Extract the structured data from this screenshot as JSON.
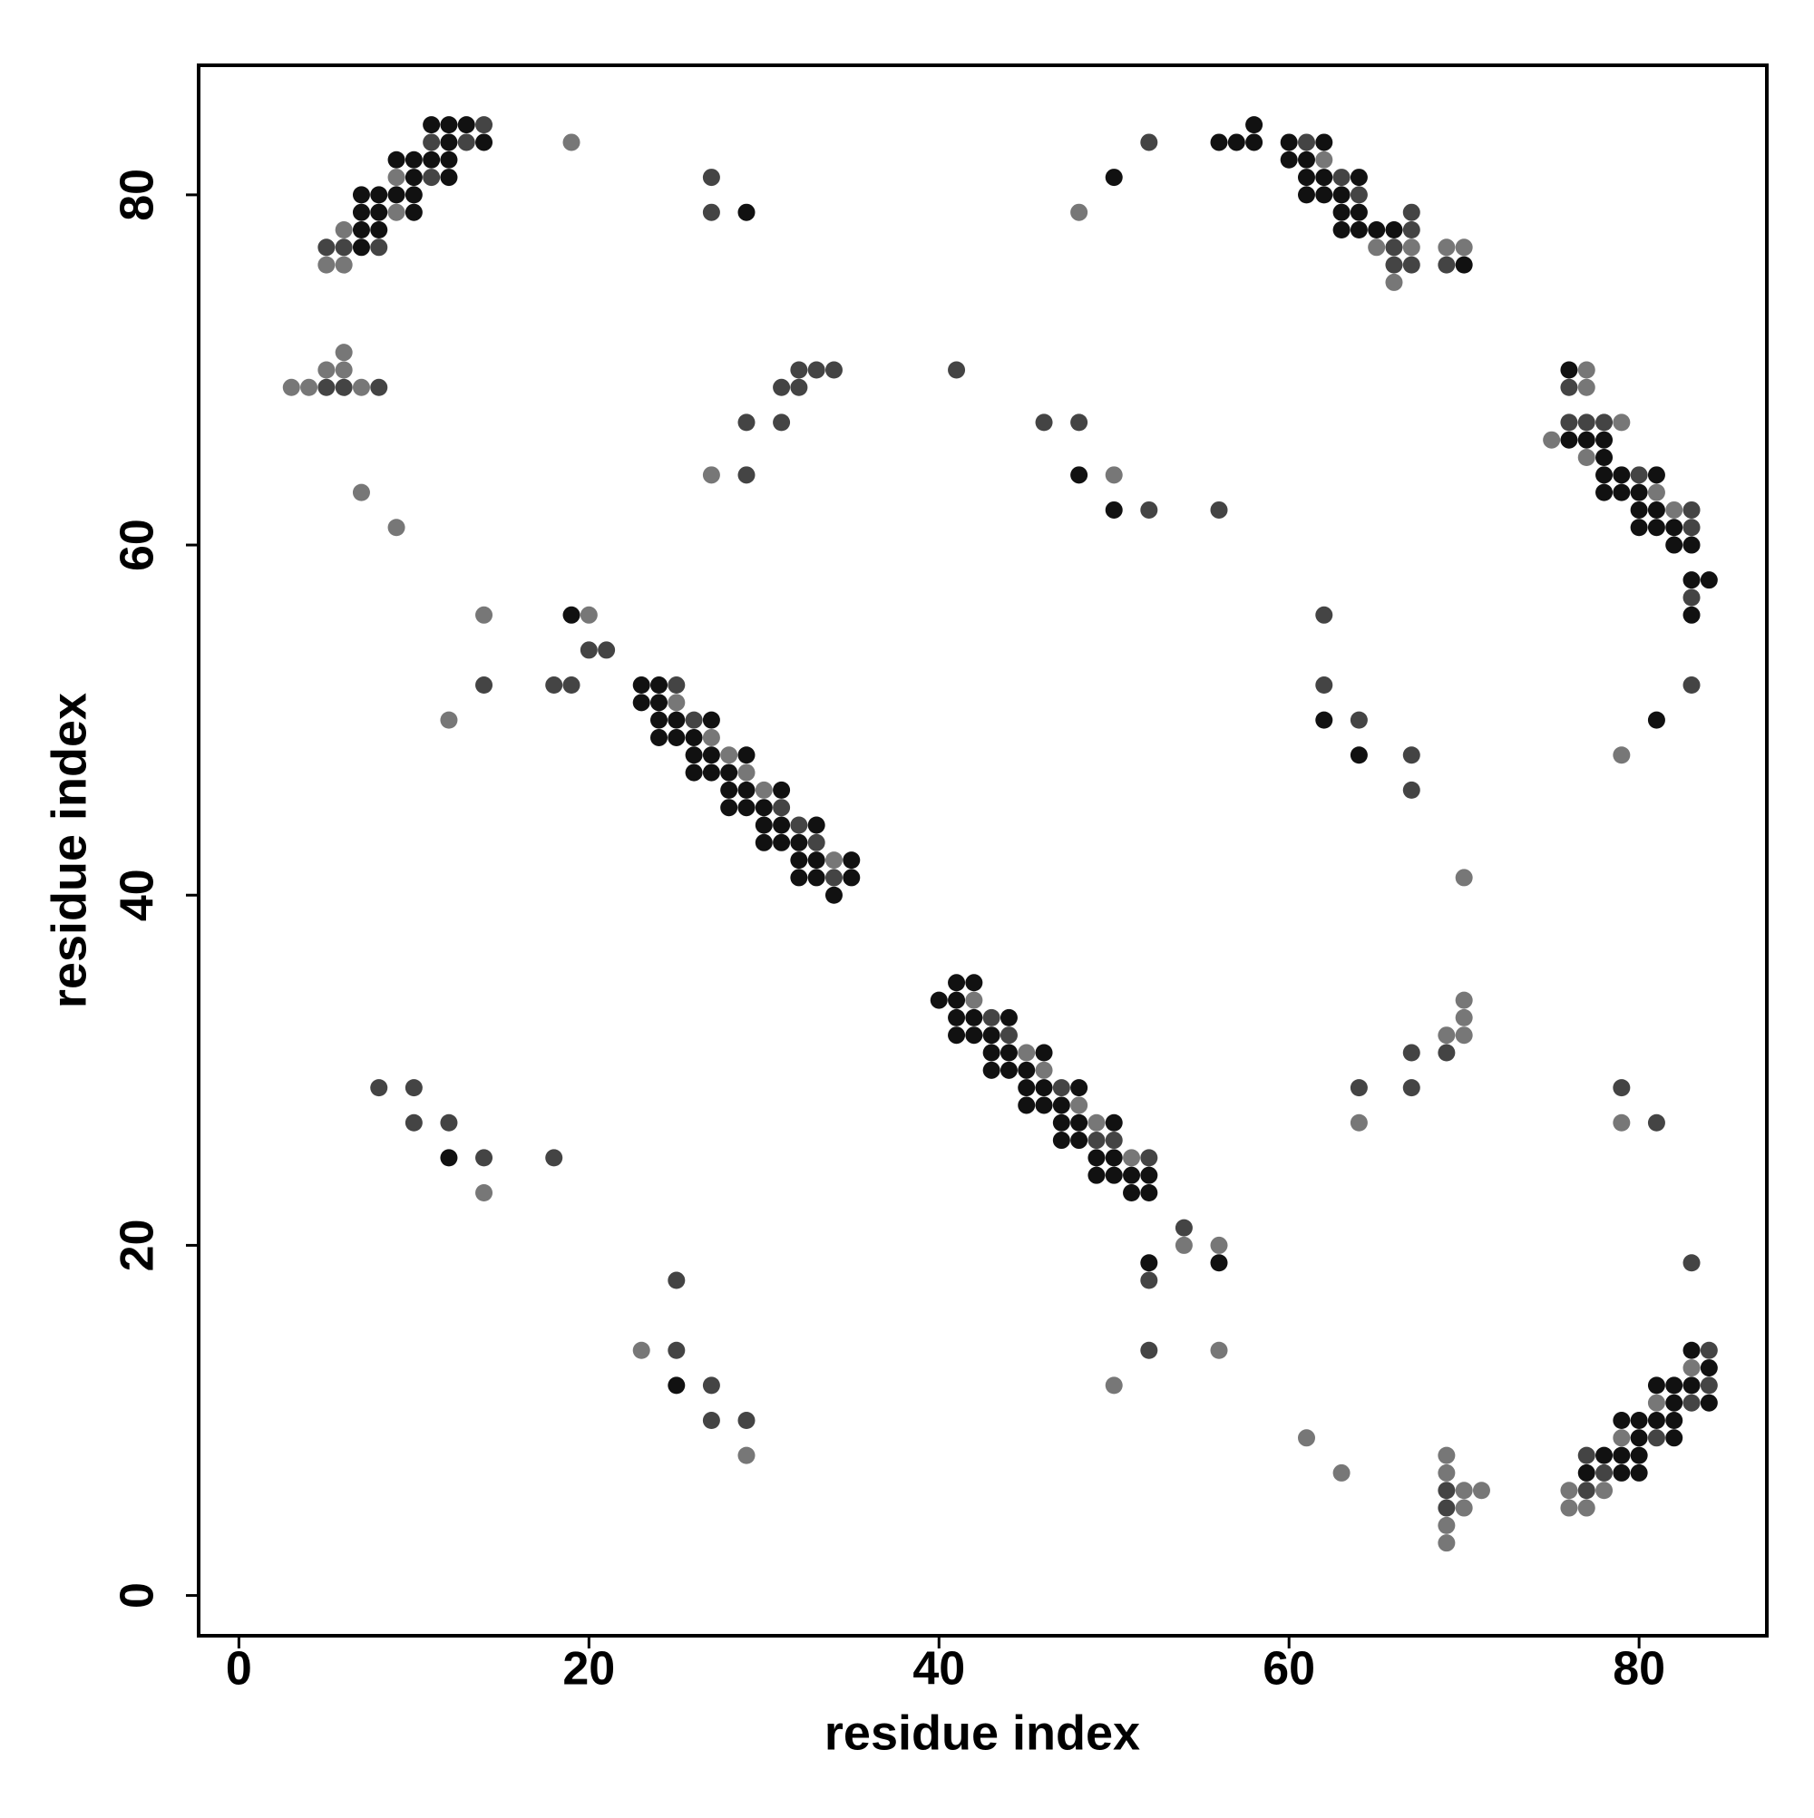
{
  "chart_data": {
    "type": "scatter",
    "xlabel": "residue index",
    "ylabel": "residue index",
    "xlim": [
      -2.3,
      87.3
    ],
    "ylim": [
      -2.3,
      87.4
    ],
    "xticks": [
      0,
      20,
      40,
      60,
      80
    ],
    "yticks": [
      0,
      20,
      40,
      60,
      80
    ],
    "grid": false,
    "x": [
      11,
      12,
      13,
      14,
      58,
      11,
      12,
      13,
      14,
      19,
      52,
      56,
      57,
      58,
      60,
      61,
      62,
      9,
      10,
      11,
      12,
      60,
      61,
      62,
      9,
      10,
      11,
      12,
      27,
      50,
      61,
      62,
      63,
      64,
      7,
      8,
      9,
      10,
      61,
      62,
      63,
      64,
      7,
      8,
      9,
      10,
      27,
      29,
      48,
      63,
      64,
      67,
      6,
      7,
      8,
      63,
      64,
      65,
      66,
      67,
      5,
      6,
      7,
      8,
      65,
      66,
      67,
      69,
      70,
      5,
      6,
      66,
      67,
      69,
      70,
      66,
      6,
      5,
      6,
      32,
      33,
      34,
      41,
      76,
      77,
      3,
      4,
      5,
      6,
      7,
      8,
      31,
      32,
      76,
      77,
      29,
      31,
      46,
      48,
      76,
      77,
      78,
      79,
      75,
      76,
      77,
      78,
      77,
      78,
      27,
      29,
      48,
      50,
      78,
      79,
      80,
      81,
      7,
      78,
      79,
      80,
      81,
      50,
      52,
      56,
      80,
      81,
      82,
      83,
      9,
      80,
      81,
      82,
      83,
      82,
      83,
      83,
      84,
      83,
      14,
      19,
      20,
      62,
      83,
      20,
      21,
      14,
      18,
      19,
      23,
      24,
      25,
      62,
      83,
      23,
      24,
      25,
      12,
      24,
      25,
      26,
      27,
      62,
      64,
      81,
      24,
      25,
      26,
      27,
      26,
      27,
      28,
      29,
      64,
      67,
      79,
      26,
      27,
      28,
      29,
      28,
      29,
      30,
      31,
      67,
      28,
      29,
      30,
      31,
      30,
      31,
      32,
      33,
      30,
      31,
      32,
      33,
      32,
      33,
      34,
      35,
      32,
      33,
      34,
      35,
      70,
      34,
      41,
      42,
      40,
      41,
      42,
      70,
      41,
      42,
      43,
      44,
      70,
      41,
      42,
      43,
      44,
      69,
      70,
      43,
      44,
      45,
      46,
      67,
      69,
      43,
      44,
      45,
      46,
      8,
      10,
      45,
      46,
      47,
      48,
      64,
      67,
      79,
      45,
      46,
      47,
      48,
      10,
      12,
      47,
      48,
      49,
      50,
      64,
      79,
      81,
      47,
      48,
      49,
      50,
      12,
      14,
      18,
      49,
      50,
      51,
      52,
      49,
      50,
      51,
      52,
      14,
      51,
      52,
      54,
      54,
      56,
      52,
      56,
      83,
      25,
      52,
      23,
      25,
      52,
      56,
      83,
      84,
      83,
      84,
      25,
      27,
      50,
      81,
      82,
      83,
      84,
      81,
      82,
      83,
      84,
      27,
      29,
      79,
      80,
      81,
      82,
      61,
      79,
      80,
      81,
      82,
      29,
      69,
      77,
      78,
      79,
      80,
      63,
      69,
      77,
      78,
      79,
      80,
      69,
      70,
      71,
      76,
      77,
      78,
      69,
      70,
      76,
      77,
      69,
      69
    ],
    "values": [
      84,
      84,
      84,
      84,
      84,
      83,
      83,
      83,
      83,
      83,
      83,
      83,
      83,
      83,
      83,
      83,
      83,
      82,
      82,
      82,
      82,
      82,
      82,
      82,
      81,
      81,
      81,
      81,
      81,
      81,
      81,
      81,
      81,
      81,
      80,
      80,
      80,
      80,
      80,
      80,
      80,
      80,
      79,
      79,
      79,
      79,
      79,
      79,
      79,
      79,
      79,
      79,
      78,
      78,
      78,
      78,
      78,
      78,
      78,
      78,
      77,
      77,
      77,
      77,
      77,
      77,
      77,
      77,
      77,
      76,
      76,
      76,
      76,
      76,
      76,
      75,
      71,
      70,
      70,
      70,
      70,
      70,
      70,
      70,
      70,
      69,
      69,
      69,
      69,
      69,
      69,
      69,
      69,
      69,
      69,
      67,
      67,
      67,
      67,
      67,
      67,
      67,
      67,
      66,
      66,
      66,
      66,
      65,
      65,
      64,
      64,
      64,
      64,
      64,
      64,
      64,
      64,
      63,
      63,
      63,
      63,
      63,
      62,
      62,
      62,
      62,
      62,
      62,
      62,
      61,
      61,
      61,
      61,
      61,
      60,
      60,
      58,
      58,
      57,
      56,
      56,
      56,
      56,
      56,
      54,
      54,
      52,
      52,
      52,
      52,
      52,
      52,
      52,
      52,
      51,
      51,
      51,
      50,
      50,
      50,
      50,
      50,
      50,
      50,
      50,
      49,
      49,
      49,
      49,
      48,
      48,
      48,
      48,
      48,
      48,
      48,
      47,
      47,
      47,
      47,
      46,
      46,
      46,
      46,
      46,
      45,
      45,
      45,
      45,
      44,
      44,
      44,
      44,
      43,
      43,
      43,
      43,
      42,
      42,
      42,
      42,
      41,
      41,
      41,
      41,
      41,
      40,
      35,
      35,
      34,
      34,
      34,
      34,
      33,
      33,
      33,
      33,
      33,
      32,
      32,
      32,
      32,
      32,
      32,
      31,
      31,
      31,
      31,
      31,
      31,
      30,
      30,
      30,
      30,
      29,
      29,
      29,
      29,
      29,
      29,
      29,
      29,
      29,
      28,
      28,
      28,
      28,
      27,
      27,
      27,
      27,
      27,
      27,
      27,
      27,
      27,
      26,
      26,
      26,
      26,
      25,
      25,
      25,
      25,
      25,
      25,
      25,
      24,
      24,
      24,
      24,
      23,
      23,
      23,
      21,
      20,
      20,
      19,
      19,
      19,
      18,
      18,
      14,
      14,
      14,
      14,
      14,
      14,
      13,
      13,
      12,
      12,
      12,
      12,
      12,
      12,
      12,
      11,
      11,
      11,
      11,
      10,
      10,
      10,
      10,
      10,
      10,
      9,
      9,
      9,
      9,
      9,
      8,
      8,
      8,
      8,
      8,
      8,
      7,
      7,
      7,
      7,
      7,
      7,
      6,
      6,
      6,
      6,
      6,
      6,
      5,
      5,
      5,
      5,
      4,
      3
    ],
    "colors": [
      "#111",
      "#111",
      "#111",
      "#444",
      "#111",
      "#444",
      "#111",
      "#444",
      "#111",
      "#777",
      "#444",
      "#111",
      "#111",
      "#111",
      "#111",
      "#444",
      "#111",
      "#111",
      "#111",
      "#111",
      "#111",
      "#111",
      "#111",
      "#777",
      "#777",
      "#111",
      "#444",
      "#111",
      "#444",
      "#111",
      "#111",
      "#111",
      "#444",
      "#111",
      "#111",
      "#111",
      "#111",
      "#111",
      "#111",
      "#111",
      "#111",
      "#444",
      "#111",
      "#111",
      "#777",
      "#111",
      "#444",
      "#111",
      "#777",
      "#111",
      "#111",
      "#444",
      "#777",
      "#111",
      "#111",
      "#111",
      "#111",
      "#111",
      "#111",
      "#444",
      "#444",
      "#444",
      "#111",
      "#444",
      "#777",
      "#444",
      "#777",
      "#777",
      "#777",
      "#777",
      "#777",
      "#444",
      "#444",
      "#444",
      "#111",
      "#777",
      "#777",
      "#777",
      "#777",
      "#444",
      "#444",
      "#444",
      "#444",
      "#111",
      "#777",
      "#777",
      "#777",
      "#444",
      "#444",
      "#777",
      "#444",
      "#444",
      "#444",
      "#444",
      "#777",
      "#444",
      "#444",
      "#444",
      "#444",
      "#444",
      "#444",
      "#444",
      "#777",
      "#777",
      "#111",
      "#111",
      "#111",
      "#777",
      "#111",
      "#777",
      "#444",
      "#111",
      "#777",
      "#111",
      "#111",
      "#444",
      "#111",
      "#777",
      "#111",
      "#111",
      "#111",
      "#777",
      "#111",
      "#444",
      "#444",
      "#111",
      "#111",
      "#777",
      "#444",
      "#777",
      "#111",
      "#111",
      "#111",
      "#444",
      "#111",
      "#111",
      "#111",
      "#111",
      "#444",
      "#777",
      "#111",
      "#777",
      "#444",
      "#111",
      "#444",
      "#444",
      "#444",
      "#444",
      "#444",
      "#111",
      "#111",
      "#444",
      "#444",
      "#444",
      "#111",
      "#111",
      "#777",
      "#777",
      "#111",
      "#111",
      "#444",
      "#111",
      "#111",
      "#444",
      "#111",
      "#111",
      "#111",
      "#111",
      "#777",
      "#111",
      "#111",
      "#777",
      "#111",
      "#111",
      "#444",
      "#777",
      "#111",
      "#111",
      "#111",
      "#777",
      "#111",
      "#111",
      "#777",
      "#111",
      "#444",
      "#111",
      "#111",
      "#111",
      "#444",
      "#111",
      "#111",
      "#444",
      "#111",
      "#111",
      "#111",
      "#111",
      "#444",
      "#111",
      "#111",
      "#777",
      "#111",
      "#111",
      "#111",
      "#444",
      "#111",
      "#777",
      "#111",
      "#111",
      "#111",
      "#111",
      "#111",
      "#777",
      "#777",
      "#111",
      "#111",
      "#444",
      "#111",
      "#777",
      "#111",
      "#111",
      "#111",
      "#444",
      "#777",
      "#777",
      "#111",
      "#111",
      "#777",
      "#111",
      "#444",
      "#444",
      "#111",
      "#111",
      "#111",
      "#777",
      "#444",
      "#444",
      "#111",
      "#111",
      "#444",
      "#111",
      "#444",
      "#444",
      "#444",
      "#111",
      "#111",
      "#111",
      "#777",
      "#444",
      "#444",
      "#111",
      "#111",
      "#777",
      "#111",
      "#777",
      "#777",
      "#444",
      "#111",
      "#111",
      "#444",
      "#444",
      "#111",
      "#444",
      "#444",
      "#111",
      "#111",
      "#777",
      "#444",
      "#111",
      "#111",
      "#111",
      "#111",
      "#777",
      "#111",
      "#111",
      "#444",
      "#777",
      "#777",
      "#111",
      "#111",
      "#444",
      "#444",
      "#444",
      "#777",
      "#444",
      "#444",
      "#777",
      "#111",
      "#444",
      "#777",
      "#111",
      "#111",
      "#444",
      "#777",
      "#111",
      "#111",
      "#111",
      "#444",
      "#777",
      "#111",
      "#444",
      "#111",
      "#444",
      "#444",
      "#111",
      "#111",
      "#111",
      "#111",
      "#777",
      "#777",
      "#111",
      "#444",
      "#111",
      "#777",
      "#777",
      "#444",
      "#111",
      "#111",
      "#111",
      "#777",
      "#777",
      "#111",
      "#444",
      "#111",
      "#111",
      "#444",
      "#777",
      "#777",
      "#777",
      "#444",
      "#777",
      "#444",
      "#777",
      "#777",
      "#777",
      "#777",
      "#777"
    ]
  }
}
